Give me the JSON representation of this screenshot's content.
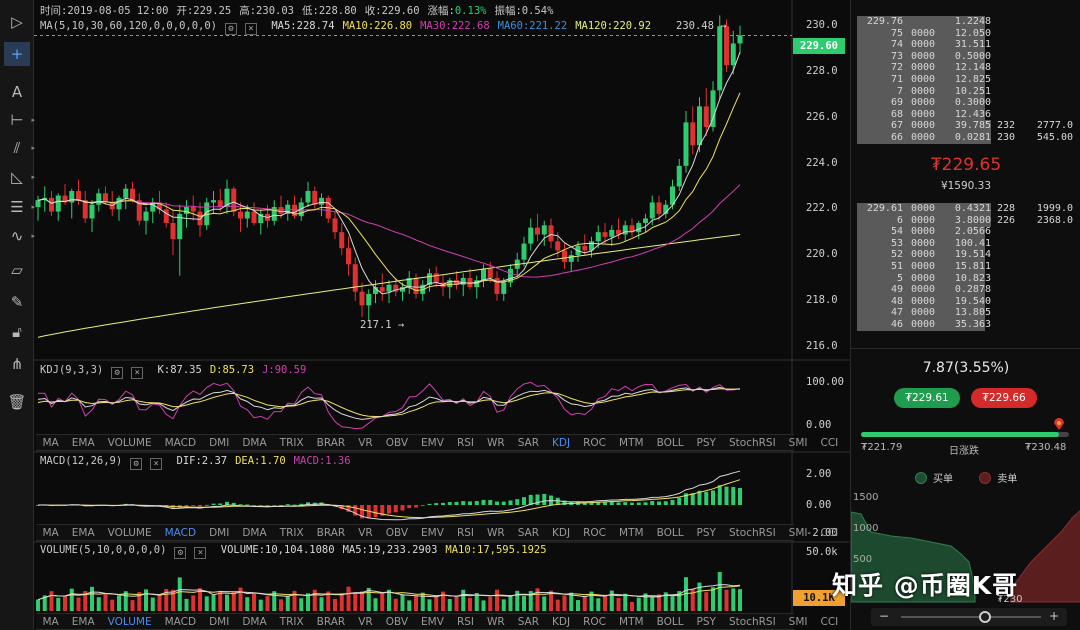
{
  "toolbar": {
    "tools": [
      "cursor-icon",
      "crosshair-icon",
      "text-icon",
      "horizontal-line-icon",
      "parallel-lines-icon",
      "triangle-icon",
      "fib-lines-icon",
      "wave-icon",
      "ruler-icon",
      "brush-icon",
      "lock-icon",
      "magnet-icon",
      "trash-icon"
    ]
  },
  "header": {
    "time": "时间:2019-08-05 12:00",
    "open": "开:229.25",
    "high": "高:230.03",
    "low": "低:228.80",
    "close": "收:229.60",
    "change_label": "涨幅:",
    "change": "0.13%",
    "amp": "振幅:0.54%"
  },
  "ma": {
    "name": "MA(5,10,30,60,120,0,0,0,0,0)",
    "ma5": "MA5:228.74",
    "ma10": "MA10:226.80",
    "ma30": "MA30:222.68",
    "ma60": "MA60:221.22",
    "ma120": "MA120:220.92"
  },
  "annotations": {
    "high": "230.48 →",
    "low": "217.1 →",
    "last_price": "229.60"
  },
  "price_axis": [
    "230.0",
    "228.0",
    "226.0",
    "224.0",
    "222.0",
    "220.0",
    "218.0",
    "216.0"
  ],
  "kdj": {
    "name": "KDJ(9,3,3)",
    "k": "K:87.35",
    "d": "D:85.73",
    "j": "J:90.59",
    "axis": [
      "100.00",
      "0.00"
    ]
  },
  "macd": {
    "name": "MACD(12,26,9)",
    "dif": "DIF:2.37",
    "dea": "DEA:1.70",
    "macd": "MACD:1.36",
    "axis": [
      "2.00",
      "0.00",
      "-2.00"
    ]
  },
  "volume": {
    "name": "VOLUME(5,10,0,0,0,0)",
    "vol": "VOLUME:10,104.1080",
    "ma5": "MA5:19,233.2903",
    "ma10": "MA10:17,595.1925",
    "axis": [
      "50.0k",
      "0.00"
    ],
    "tag": "10.1K"
  },
  "indicator_tabs": [
    "MA",
    "EMA",
    "VOLUME",
    "MACD",
    "DMI",
    "DMA",
    "TRIX",
    "BRAR",
    "VR",
    "OBV",
    "EMV",
    "RSI",
    "WR",
    "SAR",
    "KDJ",
    "ROC",
    "MTM",
    "BOLL",
    "PSY",
    "StochRSI",
    "SMI",
    "CCI",
    "MFI",
    "ATR"
  ],
  "active_tabs": {
    "row1": "KDJ",
    "row2": "MACD",
    "row3": "VOLUME"
  },
  "orderbook": {
    "asks": [
      {
        "p": "229.76",
        "a": "1.2248",
        "c": "",
        "t": ""
      },
      {
        "p": "75",
        "a": "12.050",
        "c": "",
        "t": ""
      },
      {
        "p": "74",
        "a": "31.511",
        "c": "",
        "t": ""
      },
      {
        "p": "73",
        "a": "0.5000",
        "c": "",
        "t": ""
      },
      {
        "p": "72",
        "a": "12.148",
        "c": "",
        "t": ""
      },
      {
        "p": "71",
        "a": "12.825",
        "c": "",
        "t": ""
      },
      {
        "p": "7",
        "a": "10.251",
        "c": "",
        "t": ""
      },
      {
        "p": "69",
        "a": "0.3000",
        "c": "",
        "t": ""
      },
      {
        "p": "68",
        "a": "12.436",
        "c": "",
        "t": ""
      },
      {
        "p": "67",
        "a": "39.785",
        "c": "232",
        "t": "2777.0"
      },
      {
        "p": "66",
        "a": "0.0281",
        "c": "230",
        "t": "545.00"
      }
    ],
    "ask_prefix": [
      "",
      "0000",
      "0000",
      "0000",
      "0000",
      "0000",
      "0000",
      "0000",
      "0000",
      "0000",
      "0000"
    ],
    "last": "₮229.65",
    "last_cny": "¥1590.33",
    "bids": [
      {
        "p": "229.61",
        "a": "0.4321",
        "c": "228",
        "t": "1999.0"
      },
      {
        "p": "6",
        "a": "3.8000",
        "c": "226",
        "t": "2368.0"
      },
      {
        "p": "54",
        "a": "2.0566",
        "c": "",
        "t": ""
      },
      {
        "p": "53",
        "a": "100.41",
        "c": "",
        "t": ""
      },
      {
        "p": "52",
        "a": "19.514",
        "c": "",
        "t": ""
      },
      {
        "p": "51",
        "a": "15.811",
        "c": "",
        "t": ""
      },
      {
        "p": "5",
        "a": "10.823",
        "c": "",
        "t": ""
      },
      {
        "p": "49",
        "a": "0.2878",
        "c": "",
        "t": ""
      },
      {
        "p": "48",
        "a": "19.540",
        "c": "",
        "t": ""
      },
      {
        "p": "47",
        "a": "13.805",
        "c": "",
        "t": ""
      },
      {
        "p": "46",
        "a": "35.363",
        "c": "",
        "t": ""
      }
    ],
    "bid_prefix": [
      "0000",
      "0000",
      "0000",
      "0000",
      "0000",
      "0000",
      "0000",
      "0000",
      "0000",
      "0000",
      "0000"
    ]
  },
  "stats": {
    "change": "7.87(3.55%)",
    "buy_btn": "₮229.61",
    "sell_btn": "₮229.66",
    "low": "₮221.79",
    "range_label": "日涨跌",
    "high": "₮230.48",
    "range_pos": 0.95
  },
  "depth": {
    "legend_buy": "买单",
    "legend_sell": "卖单",
    "y_axis": [
      "1500",
      "1000",
      "500"
    ],
    "x_label": "₮230"
  },
  "watermark": "知乎 @币圈K哥",
  "colors": {
    "up": "#2ecc71",
    "down": "#e03131",
    "ma5": "#d9d9d9",
    "ma10": "#f0e15a",
    "ma30": "#d03fb0",
    "ma60": "#3f8fd9",
    "ma120": "#e6f07a"
  },
  "chart_data": {
    "type": "candlestick",
    "price_range": [
      215.5,
      230.8
    ],
    "candles": [
      [
        222.1,
        222.6,
        221.5,
        222.4
      ],
      [
        222.4,
        223.0,
        221.9,
        222.5
      ],
      [
        222.5,
        222.8,
        221.7,
        221.9
      ],
      [
        221.9,
        222.7,
        221.5,
        222.6
      ],
      [
        222.6,
        223.1,
        222.2,
        222.3
      ],
      [
        222.3,
        222.9,
        221.6,
        222.8
      ],
      [
        222.8,
        223.3,
        222.2,
        222.4
      ],
      [
        222.4,
        222.8,
        221.4,
        221.6
      ],
      [
        221.6,
        222.4,
        221.0,
        222.2
      ],
      [
        222.2,
        222.9,
        221.9,
        222.7
      ],
      [
        222.7,
        223.0,
        222.2,
        222.3
      ],
      [
        222.3,
        222.8,
        221.7,
        222.0
      ],
      [
        222.0,
        222.6,
        221.5,
        222.5
      ],
      [
        222.5,
        223.1,
        222.0,
        222.9
      ],
      [
        222.9,
        223.2,
        222.3,
        222.4
      ],
      [
        222.4,
        222.7,
        221.3,
        221.5
      ],
      [
        221.5,
        222.1,
        220.9,
        221.9
      ],
      [
        221.9,
        222.5,
        221.4,
        222.3
      ],
      [
        222.3,
        222.8,
        221.8,
        222.0
      ],
      [
        222.0,
        222.3,
        221.2,
        221.4
      ],
      [
        221.4,
        222.0,
        220.0,
        220.7
      ],
      [
        220.7,
        222.2,
        219.1,
        221.8
      ],
      [
        221.8,
        222.4,
        221.2,
        222.1
      ],
      [
        222.1,
        222.6,
        221.5,
        221.9
      ],
      [
        221.9,
        222.3,
        220.8,
        221.3
      ],
      [
        221.3,
        222.5,
        221.1,
        222.3
      ],
      [
        222.3,
        222.8,
        221.8,
        222.4
      ],
      [
        222.4,
        222.9,
        221.9,
        222.1
      ],
      [
        222.1,
        223.3,
        221.8,
        222.9
      ],
      [
        222.9,
        223.0,
        221.7,
        221.9
      ],
      [
        221.9,
        222.3,
        221.0,
        221.6
      ],
      [
        221.6,
        222.2,
        221.2,
        221.9
      ],
      [
        221.9,
        222.3,
        221.3,
        221.4
      ],
      [
        221.4,
        222.0,
        220.9,
        221.8
      ],
      [
        221.8,
        222.2,
        221.2,
        221.5
      ],
      [
        221.5,
        222.4,
        221.3,
        222.1
      ],
      [
        222.1,
        222.6,
        221.6,
        221.8
      ],
      [
        221.8,
        222.4,
        221.5,
        222.2
      ],
      [
        222.2,
        222.6,
        221.6,
        221.7
      ],
      [
        221.7,
        222.5,
        221.5,
        222.3
      ],
      [
        222.3,
        223.2,
        222.1,
        222.8
      ],
      [
        222.8,
        223.0,
        222.0,
        222.2
      ],
      [
        222.2,
        222.7,
        221.7,
        222.5
      ],
      [
        222.5,
        222.6,
        221.4,
        221.6
      ],
      [
        221.6,
        221.9,
        220.7,
        221.0
      ],
      [
        221.0,
        221.4,
        220.0,
        220.3
      ],
      [
        220.3,
        220.8,
        219.1,
        219.6
      ],
      [
        219.6,
        219.9,
        218.0,
        218.4
      ],
      [
        218.4,
        218.8,
        217.3,
        217.8
      ],
      [
        217.8,
        218.5,
        217.1,
        218.3
      ],
      [
        218.3,
        218.9,
        217.9,
        218.6
      ],
      [
        218.6,
        219.2,
        218.0,
        218.4
      ],
      [
        218.4,
        218.9,
        217.9,
        218.7
      ],
      [
        218.7,
        219.0,
        218.2,
        218.4
      ],
      [
        218.4,
        218.8,
        218.0,
        218.6
      ],
      [
        218.6,
        219.3,
        218.3,
        219.0
      ],
      [
        219.0,
        219.2,
        218.1,
        218.3
      ],
      [
        218.3,
        218.9,
        218.0,
        218.7
      ],
      [
        218.7,
        219.4,
        218.4,
        219.2
      ],
      [
        219.2,
        219.5,
        218.6,
        218.8
      ],
      [
        218.8,
        219.1,
        218.2,
        218.6
      ],
      [
        218.6,
        219.0,
        218.1,
        218.9
      ],
      [
        218.9,
        219.3,
        218.5,
        218.7
      ],
      [
        218.7,
        219.2,
        218.2,
        219.0
      ],
      [
        219.0,
        219.4,
        218.5,
        218.6
      ],
      [
        218.6,
        219.1,
        218.1,
        218.9
      ],
      [
        218.9,
        219.6,
        218.6,
        219.4
      ],
      [
        219.4,
        219.7,
        218.8,
        219.0
      ],
      [
        219.0,
        219.3,
        218.0,
        218.3
      ],
      [
        218.3,
        219.0,
        218.0,
        218.8
      ],
      [
        218.8,
        219.6,
        218.6,
        219.4
      ],
      [
        219.4,
        220.1,
        219.1,
        219.8
      ],
      [
        219.8,
        220.8,
        219.5,
        220.5
      ],
      [
        220.5,
        221.6,
        220.2,
        221.2
      ],
      [
        221.2,
        221.8,
        220.6,
        220.9
      ],
      [
        220.9,
        221.5,
        220.4,
        221.3
      ],
      [
        221.3,
        221.6,
        220.3,
        220.6
      ],
      [
        220.6,
        221.0,
        219.9,
        220.2
      ],
      [
        220.2,
        220.5,
        219.4,
        219.7
      ],
      [
        219.7,
        220.2,
        219.3,
        220.0
      ],
      [
        220.0,
        220.6,
        219.7,
        220.4
      ],
      [
        220.4,
        220.9,
        220.0,
        220.2
      ],
      [
        220.2,
        220.8,
        219.9,
        220.6
      ],
      [
        220.6,
        221.3,
        220.3,
        221.0
      ],
      [
        221.0,
        221.4,
        220.5,
        220.8
      ],
      [
        220.8,
        221.3,
        220.4,
        221.1
      ],
      [
        221.1,
        221.6,
        220.7,
        220.9
      ],
      [
        220.9,
        221.5,
        220.6,
        221.3
      ],
      [
        221.3,
        221.6,
        220.8,
        221.0
      ],
      [
        221.0,
        221.5,
        220.7,
        221.4
      ],
      [
        221.4,
        221.8,
        221.0,
        221.6
      ],
      [
        221.6,
        222.6,
        221.3,
        222.3
      ],
      [
        222.3,
        222.6,
        221.5,
        221.8
      ],
      [
        221.8,
        222.4,
        221.6,
        222.2
      ],
      [
        222.2,
        223.3,
        222.0,
        223.0
      ],
      [
        223.0,
        224.2,
        222.8,
        223.9
      ],
      [
        223.9,
        226.3,
        223.6,
        225.8
      ],
      [
        225.8,
        226.5,
        224.4,
        224.8
      ],
      [
        224.8,
        226.9,
        224.5,
        226.5
      ],
      [
        226.5,
        227.3,
        225.2,
        225.6
      ],
      [
        225.6,
        227.6,
        225.4,
        227.2
      ],
      [
        227.2,
        230.48,
        226.8,
        230.0
      ],
      [
        230.0,
        230.3,
        228.0,
        228.3
      ],
      [
        228.3,
        229.8,
        227.9,
        229.25
      ],
      [
        229.25,
        230.03,
        228.8,
        229.6
      ]
    ]
  }
}
